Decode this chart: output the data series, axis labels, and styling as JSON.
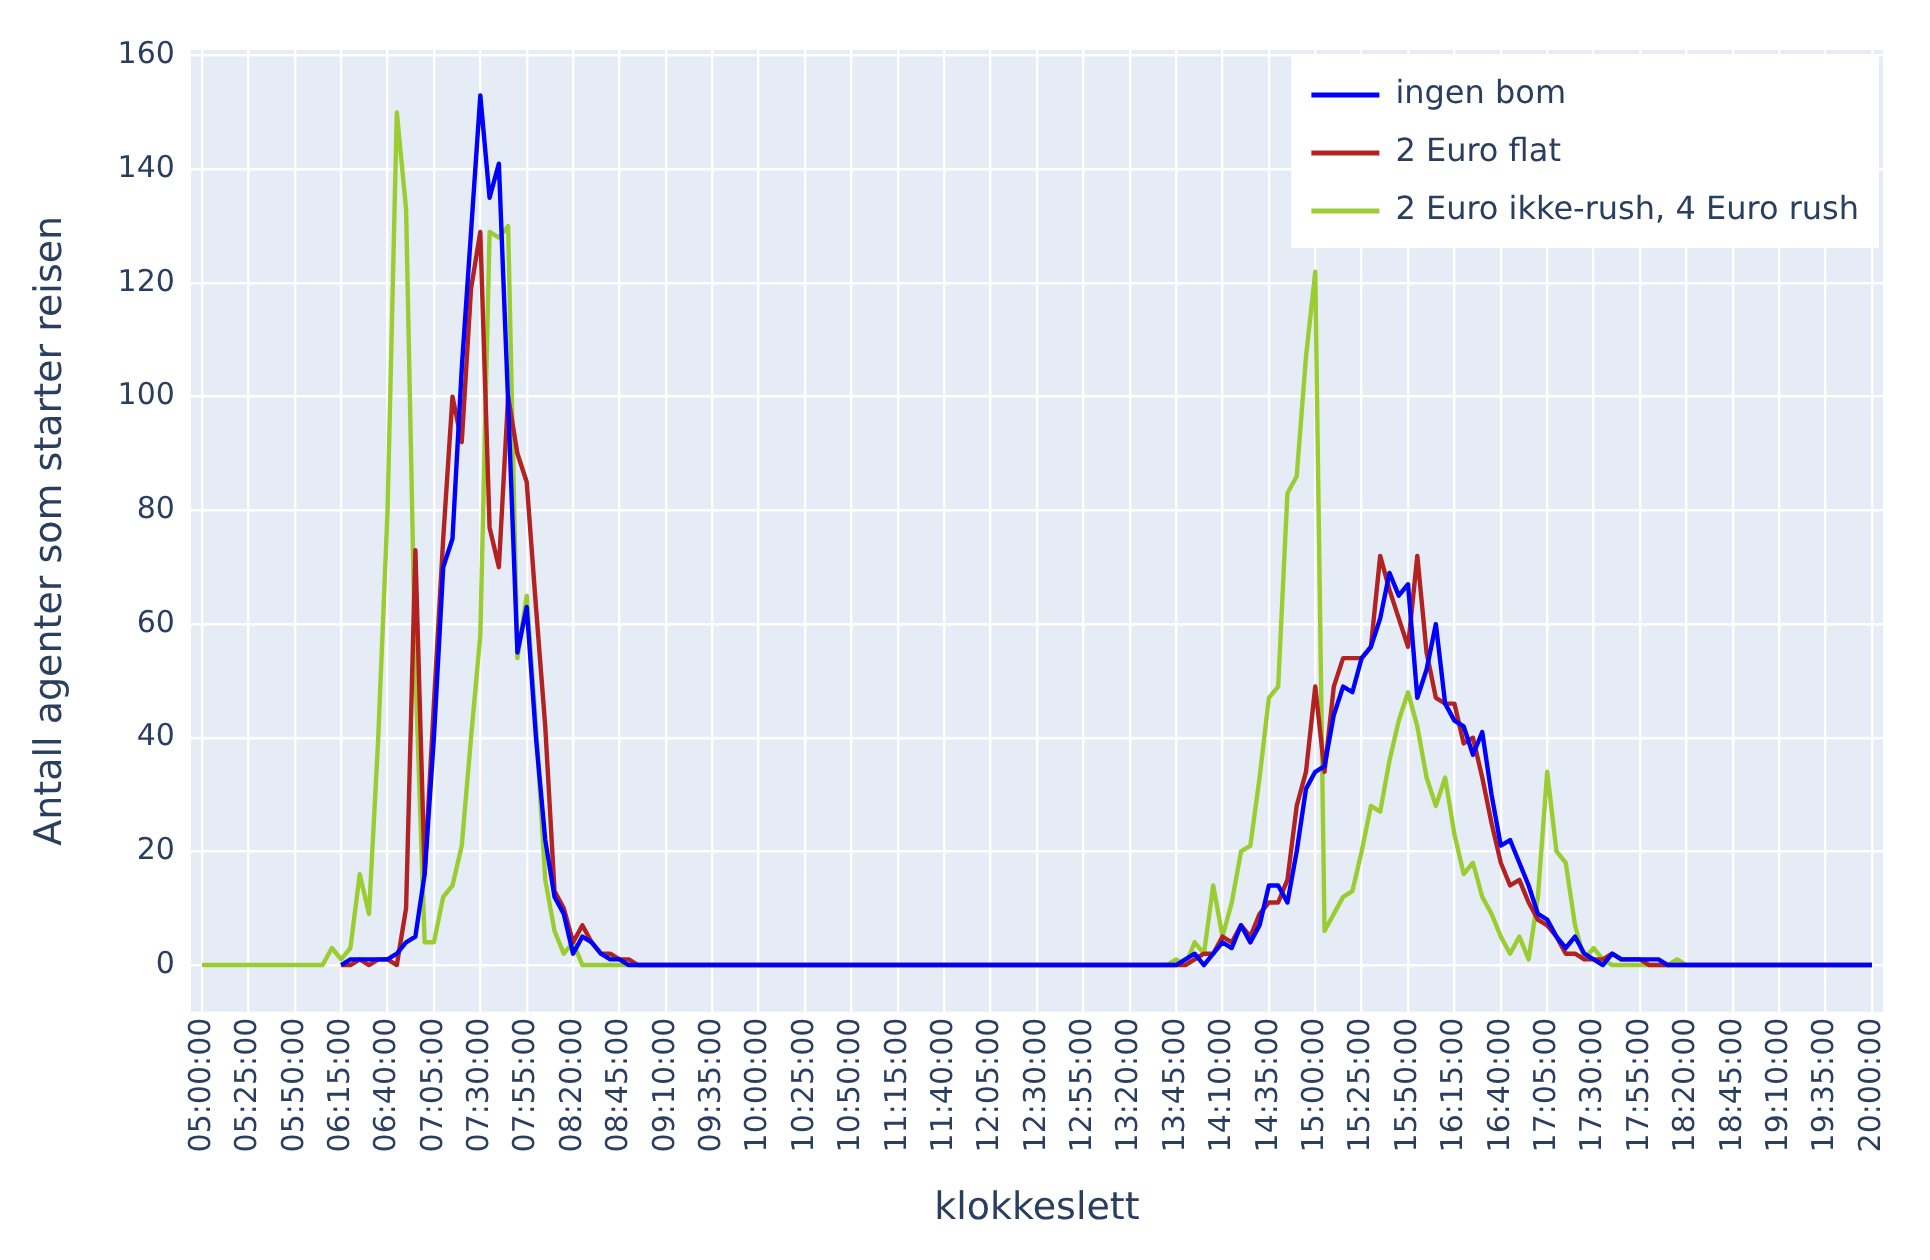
{
  "chart_data": {
    "type": "line",
    "xlabel": "klokkeslett",
    "ylabel": "Antall agenter som starter reisen",
    "xlim": [
      4.9,
      20.1
    ],
    "ylim": [
      -8.2,
      161
    ],
    "xticks": [
      {
        "value": 5,
        "label": "05:00:00"
      },
      {
        "value": 5.4167,
        "label": "05:25:00"
      },
      {
        "value": 5.8333,
        "label": "05:50:00"
      },
      {
        "value": 6.25,
        "label": "06:15:00"
      },
      {
        "value": 6.6667,
        "label": "06:40:00"
      },
      {
        "value": 7.0833,
        "label": "07:05:00"
      },
      {
        "value": 7.5,
        "label": "07:30:00"
      },
      {
        "value": 7.9167,
        "label": "07:55:00"
      },
      {
        "value": 8.3333,
        "label": "08:20:00"
      },
      {
        "value": 8.75,
        "label": "08:45:00"
      },
      {
        "value": 9.1667,
        "label": "09:10:00"
      },
      {
        "value": 9.5833,
        "label": "09:35:00"
      },
      {
        "value": 10,
        "label": "10:00:00"
      },
      {
        "value": 10.4167,
        "label": "10:25:00"
      },
      {
        "value": 10.8333,
        "label": "10:50:00"
      },
      {
        "value": 11.25,
        "label": "11:15:00"
      },
      {
        "value": 11.6667,
        "label": "11:40:00"
      },
      {
        "value": 12.0833,
        "label": "12:05:00"
      },
      {
        "value": 12.5,
        "label": "12:30:00"
      },
      {
        "value": 12.9167,
        "label": "12:55:00"
      },
      {
        "value": 13.3333,
        "label": "13:20:00"
      },
      {
        "value": 13.75,
        "label": "13:45:00"
      },
      {
        "value": 14.1667,
        "label": "14:10:00"
      },
      {
        "value": 14.5833,
        "label": "14:35:00"
      },
      {
        "value": 15,
        "label": "15:00:00"
      },
      {
        "value": 15.4167,
        "label": "15:25:00"
      },
      {
        "value": 15.8333,
        "label": "15:50:00"
      },
      {
        "value": 16.25,
        "label": "16:15:00"
      },
      {
        "value": 16.6667,
        "label": "16:40:00"
      },
      {
        "value": 17.0833,
        "label": "17:05:00"
      },
      {
        "value": 17.5,
        "label": "17:30:00"
      },
      {
        "value": 17.9167,
        "label": "17:55:00"
      },
      {
        "value": 18.3333,
        "label": "18:20:00"
      },
      {
        "value": 18.75,
        "label": "18:45:00"
      },
      {
        "value": 19.1667,
        "label": "19:10:00"
      },
      {
        "value": 19.5833,
        "label": "19:35:00"
      },
      {
        "value": 20,
        "label": "20:00:00"
      }
    ],
    "yticks": [
      0,
      20,
      40,
      60,
      80,
      100,
      120,
      140,
      160
    ],
    "grid": true,
    "legend": "top right",
    "marker": "none",
    "line_style": "solid",
    "series": [
      {
        "name": "ingen bom",
        "color": "#0000ff",
        "x": [
          6.25,
          6.3333,
          6.4167,
          6.5,
          6.5833,
          6.6667,
          6.75,
          6.8333,
          6.9167,
          7,
          7.0833,
          7.1667,
          7.25,
          7.3333,
          7.4167,
          7.5,
          7.5833,
          7.6667,
          7.75,
          7.8333,
          7.9167,
          8,
          8.0833,
          8.1667,
          8.25,
          8.3333,
          8.4167,
          8.5,
          8.5833,
          8.6667,
          8.75,
          8.8333,
          13.75,
          13.8333,
          13.9167,
          14,
          14.0833,
          14.1667,
          14.25,
          14.3333,
          14.4167,
          14.5,
          14.5833,
          14.6667,
          14.75,
          14.8333,
          14.9167,
          15,
          15.0833,
          15.1667,
          15.25,
          15.3333,
          15.4167,
          15.5,
          15.5833,
          15.6667,
          15.75,
          15.8333,
          15.9167,
          16,
          16.0833,
          16.1667,
          16.25,
          16.3333,
          16.4167,
          16.5,
          16.5833,
          16.6667,
          16.75,
          16.8333,
          16.9167,
          17,
          17.0833,
          17.1667,
          17.25,
          17.3333,
          17.4167,
          17.5,
          17.5833,
          17.6667,
          17.75,
          17.8333,
          17.9167,
          18,
          18.0833,
          18.1667,
          20
        ],
        "values": [
          0,
          1,
          1,
          1,
          1,
          1,
          2,
          4,
          5,
          16,
          40,
          70,
          75,
          105,
          129,
          153,
          135,
          141,
          99,
          55,
          63,
          40,
          22,
          12,
          9,
          2,
          5,
          4,
          2,
          1,
          1,
          0,
          0,
          1,
          2,
          0,
          2,
          4,
          3,
          7,
          4,
          7,
          14,
          14,
          11,
          20,
          31,
          34,
          35,
          44,
          49,
          48,
          54,
          56,
          61,
          69,
          65,
          67,
          47,
          52,
          60,
          46,
          43,
          42,
          37,
          41,
          30,
          21,
          22,
          18,
          14,
          9,
          8,
          5,
          3,
          5,
          2,
          1,
          0,
          2,
          1,
          1,
          1,
          1,
          1,
          0,
          0
        ]
      },
      {
        "name": "2 Euro flat",
        "color": "#b22222",
        "x": [
          6.25,
          6.3333,
          6.4167,
          6.5,
          6.5833,
          6.6667,
          6.75,
          6.8333,
          6.9167,
          7,
          7.0833,
          7.1667,
          7.25,
          7.3333,
          7.4167,
          7.5,
          7.5833,
          7.6667,
          7.75,
          7.8333,
          7.9167,
          8,
          8.0833,
          8.1667,
          8.25,
          8.3333,
          8.4167,
          8.5,
          8.5833,
          8.6667,
          8.75,
          8.8333,
          8.9167,
          13.8333,
          13.9167,
          14,
          14.0833,
          14.1667,
          14.25,
          14.3333,
          14.4167,
          14.5,
          14.5833,
          14.6667,
          14.75,
          14.8333,
          14.9167,
          15,
          15.0833,
          15.1667,
          15.25,
          15.3333,
          15.4167,
          15.5,
          15.5833,
          15.6667,
          15.75,
          15.8333,
          15.9167,
          16,
          16.0833,
          16.1667,
          16.25,
          16.3333,
          16.4167,
          16.5,
          16.5833,
          16.6667,
          16.75,
          16.8333,
          16.9167,
          17,
          17.0833,
          17.1667,
          17.25,
          17.3333,
          17.4167,
          17.5,
          17.5833,
          17.6667,
          17.75,
          17.8333,
          17.9167,
          18,
          20
        ],
        "values": [
          0,
          0,
          1,
          0,
          1,
          1,
          0,
          10,
          73,
          16,
          46,
          75,
          100,
          92,
          119,
          129,
          77,
          70,
          100,
          90,
          85,
          63,
          42,
          13,
          10,
          4,
          7,
          4,
          2,
          2,
          1,
          1,
          0,
          0,
          1,
          2,
          2,
          5,
          4,
          7,
          5,
          9,
          11,
          11,
          15,
          28,
          34,
          49,
          34,
          49,
          54,
          54,
          54,
          56,
          72,
          66,
          61,
          56,
          72,
          55,
          47,
          46,
          46,
          39,
          40,
          33,
          25,
          18,
          14,
          15,
          11,
          8,
          7,
          5,
          2,
          2,
          1,
          1,
          1,
          2,
          1,
          1,
          1,
          0,
          0
        ]
      },
      {
        "name": "2 Euro ikke-rush, 4 Euro rush",
        "color": "#9acd32",
        "x": [
          5,
          6.0833,
          6.1667,
          6.25,
          6.3333,
          6.4167,
          6.5,
          6.5833,
          6.6667,
          6.75,
          6.8333,
          6.9167,
          7,
          7.0833,
          7.1667,
          7.25,
          7.3333,
          7.4167,
          7.5,
          7.5833,
          7.6667,
          7.75,
          7.8333,
          7.9167,
          8,
          8.0833,
          8.1667,
          8.25,
          8.3333,
          8.4167,
          13.6667,
          13.75,
          13.8333,
          13.9167,
          14,
          14.0833,
          14.1667,
          14.25,
          14.3333,
          14.4167,
          14.5,
          14.5833,
          14.6667,
          14.75,
          14.8333,
          14.9167,
          15,
          15.0833,
          15.1667,
          15.25,
          15.3333,
          15.4167,
          15.5,
          15.5833,
          15.6667,
          15.75,
          15.8333,
          15.9167,
          16,
          16.0833,
          16.1667,
          16.25,
          16.3333,
          16.4167,
          16.5,
          16.5833,
          16.6667,
          16.75,
          16.8333,
          16.9167,
          17,
          17.0833,
          17.1667,
          17.25,
          17.3333,
          17.4167,
          17.5,
          17.5833,
          17.6667,
          18.1667,
          18.25,
          18.3333,
          20
        ],
        "values": [
          0,
          0,
          3,
          1,
          3,
          16,
          9,
          40,
          80,
          150,
          133,
          52,
          4,
          4,
          12,
          14,
          21,
          40,
          58,
          129,
          128,
          130,
          54,
          65,
          42,
          15,
          6,
          2,
          4,
          0,
          0,
          1,
          0,
          4,
          2,
          14,
          5,
          11,
          20,
          21,
          33,
          47,
          49,
          83,
          86,
          107,
          122,
          6,
          9,
          12,
          13,
          20,
          28,
          27,
          36,
          43,
          48,
          42,
          33,
          28,
          33,
          23,
          16,
          18,
          12,
          9,
          5,
          2,
          5,
          1,
          12,
          34,
          20,
          18,
          7,
          1,
          3,
          1,
          0,
          0,
          1,
          0,
          0
        ]
      }
    ]
  }
}
